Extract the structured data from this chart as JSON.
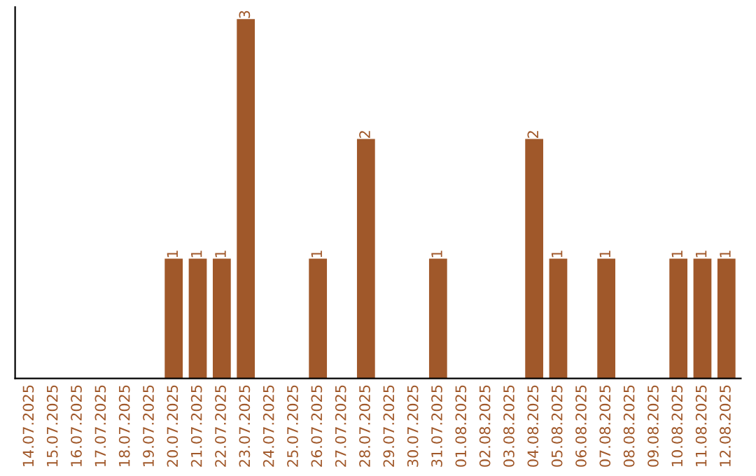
{
  "chart_data": {
    "type": "bar",
    "categories": [
      "14.07.2025",
      "15.07.2025",
      "16.07.2025",
      "17.07.2025",
      "18.07.2025",
      "19.07.2025",
      "20.07.2025",
      "21.07.2025",
      "22.07.2025",
      "23.07.2025",
      "24.07.2025",
      "25.07.2025",
      "26.07.2025",
      "27.07.2025",
      "28.07.2025",
      "29.07.2025",
      "30.07.2025",
      "31.07.2025",
      "01.08.2025",
      "02.08.2025",
      "03.08.2025",
      "04.08.2025",
      "05.08.2025",
      "06.08.2025",
      "07.08.2025",
      "08.08.2025",
      "09.08.2025",
      "10.08.2025",
      "11.08.2025",
      "12.08.2025"
    ],
    "values": [
      0,
      0,
      0,
      0,
      0,
      0,
      1,
      1,
      1,
      3,
      0,
      0,
      1,
      0,
      2,
      0,
      0,
      1,
      0,
      0,
      0,
      2,
      1,
      0,
      1,
      0,
      0,
      1,
      1,
      1
    ],
    "value_labels": [
      null,
      null,
      null,
      null,
      null,
      null,
      "1",
      "1",
      "1",
      "3",
      null,
      null,
      "1",
      null,
      "2",
      null,
      null,
      "1",
      null,
      null,
      null,
      "2",
      "1",
      null,
      "1",
      null,
      null,
      "1",
      "1",
      "1"
    ],
    "color": "#a0582a",
    "ylim": [
      0,
      3.1
    ],
    "tick_labels": "x",
    "grid": false,
    "legend": false
  }
}
